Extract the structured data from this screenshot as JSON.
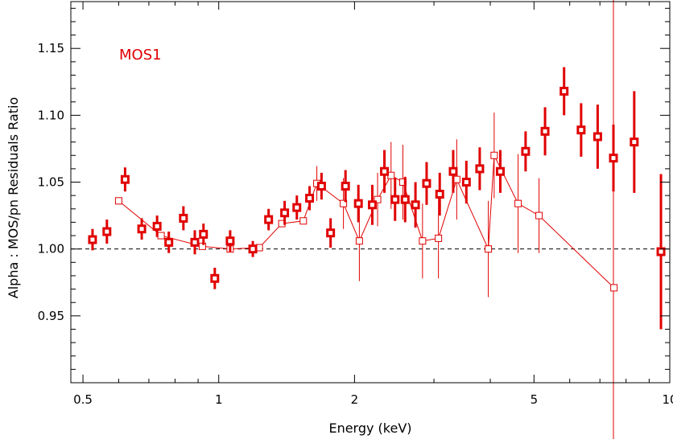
{
  "chart_data": {
    "type": "scatter",
    "title": "",
    "annotation": "MOS1",
    "xlabel": "Energy (keV)",
    "ylabel": "Alpha : MOS/pn Residuals Ratio",
    "xscale": "log",
    "xlim": [
      0.47,
      10.0
    ],
    "ylim": [
      0.9,
      1.185
    ],
    "x_ticks": [
      0.5,
      1,
      2,
      5,
      10
    ],
    "x_tick_labels": [
      "0.5",
      "1",
      "2",
      "5",
      "10"
    ],
    "y_ticks": [
      0.95,
      1.0,
      1.05,
      1.1,
      1.15
    ],
    "y_tick_labels": [
      "0.95",
      "1.00",
      "1.05",
      "1.10",
      "1.15"
    ],
    "reference_line_y": 1.0,
    "vertical_marker_x": 7.5,
    "color": "#e00000",
    "series": [
      {
        "style": "filled-square-with-error",
        "x": [
          0.525,
          0.565,
          0.62,
          0.675,
          0.73,
          0.775,
          0.835,
          0.885,
          0.925,
          0.98,
          1.06,
          1.19,
          1.29,
          1.4,
          1.49,
          1.59,
          1.69,
          1.77,
          1.91,
          2.04,
          2.19,
          2.33,
          2.46,
          2.59,
          2.73,
          2.89,
          3.09,
          3.31,
          3.54,
          3.79,
          4.21,
          4.79,
          5.29,
          5.83,
          6.36,
          6.92,
          7.5,
          8.34,
          9.56
        ],
        "y": [
          1.007,
          1.013,
          1.052,
          1.015,
          1.017,
          1.005,
          1.023,
          1.005,
          1.011,
          0.978,
          1.006,
          1.0,
          1.022,
          1.027,
          1.031,
          1.038,
          1.047,
          1.012,
          1.047,
          1.034,
          1.033,
          1.058,
          1.037,
          1.037,
          1.033,
          1.049,
          1.041,
          1.058,
          1.05,
          1.06,
          1.058,
          1.073,
          1.088,
          1.118,
          1.089,
          1.084,
          1.068,
          1.08,
          0.998
        ],
        "yerr": [
          0.008,
          0.009,
          0.009,
          0.008,
          0.008,
          0.008,
          0.009,
          0.009,
          0.008,
          0.008,
          0.008,
          0.006,
          0.008,
          0.009,
          0.009,
          0.009,
          0.01,
          0.011,
          0.012,
          0.014,
          0.015,
          0.016,
          0.016,
          0.017,
          0.017,
          0.016,
          0.016,
          0.016,
          0.016,
          0.016,
          0.016,
          0.015,
          0.018,
          0.018,
          0.02,
          0.024,
          0.025,
          0.038,
          0.058
        ]
      },
      {
        "style": "open-square-line",
        "x": [
          0.6,
          0.745,
          0.92,
          1.06,
          1.23,
          1.38,
          1.54,
          1.65,
          1.89,
          2.05,
          2.25,
          2.41,
          2.56,
          2.83,
          3.07,
          3.37,
          3.96,
          4.08,
          4.61,
          5.13,
          7.52
        ],
        "y": [
          1.036,
          1.01,
          1.002,
          1.0,
          1.001,
          1.019,
          1.021,
          1.049,
          1.034,
          1.006,
          1.037,
          1.055,
          1.05,
          1.006,
          1.008,
          1.052,
          1.0,
          1.07,
          1.034,
          1.025,
          0.971
        ],
        "yerr": [
          0.0,
          0.0,
          0.0,
          0.0,
          0.0,
          0.0,
          0.0,
          0.013,
          0.019,
          0.03,
          0.02,
          0.025,
          0.028,
          0.028,
          0.03,
          0.03,
          0.036,
          0.032,
          0.037,
          0.028,
          0.0
        ]
      }
    ]
  }
}
